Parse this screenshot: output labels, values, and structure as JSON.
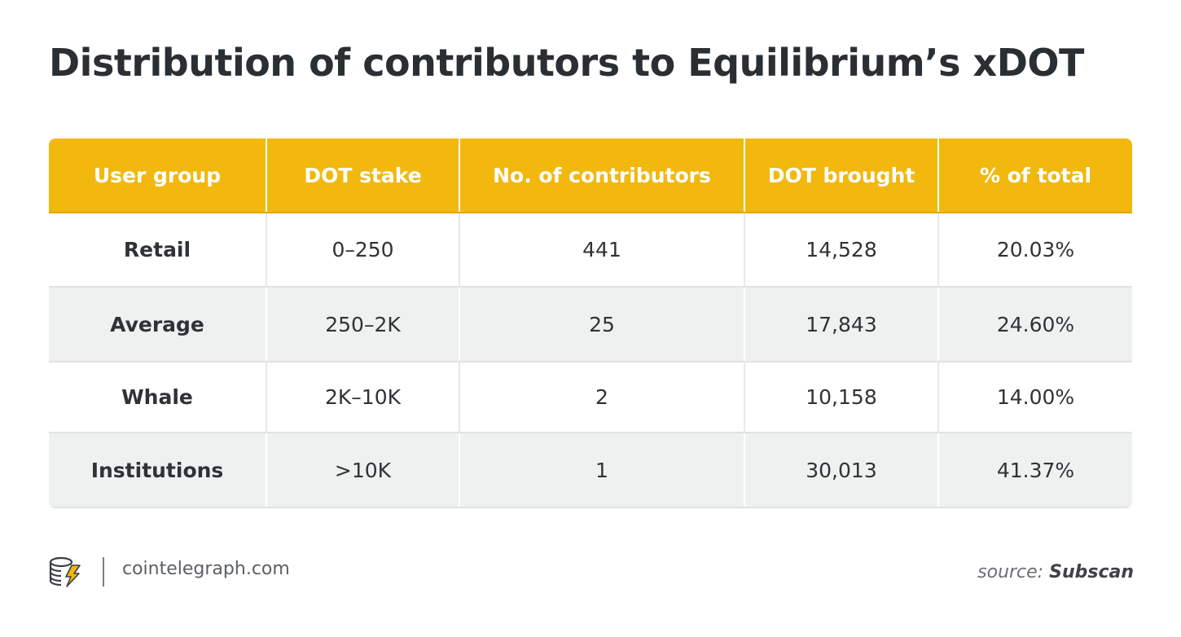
{
  "title": "Distribution of contributors to Equilibrium’s xDOT",
  "chart_data": {
    "type": "table",
    "columns": [
      "User group",
      "DOT stake",
      "No. of contributors",
      "DOT brought",
      "% of total"
    ],
    "rows": [
      [
        "Retail",
        "0–250",
        "441",
        "14,528",
        "20.03%"
      ],
      [
        "Average",
        "250–2K",
        "25",
        "17,843",
        "24.60%"
      ],
      [
        "Whale",
        "2K–10K",
        "2",
        "10,158",
        "14.00%"
      ],
      [
        "Institutions",
        ">10K",
        "1",
        "30,013",
        "41.37%"
      ]
    ]
  },
  "footer": {
    "site": "cointelegraph.com",
    "source_label": "source:",
    "source_name": "Subscan",
    "logo_icon": "cointelegraph-logo-icon"
  },
  "colors": {
    "header_bg": "#f2b80e",
    "stripe_bg": "#eff1f1",
    "title_color": "#2a2f34"
  }
}
